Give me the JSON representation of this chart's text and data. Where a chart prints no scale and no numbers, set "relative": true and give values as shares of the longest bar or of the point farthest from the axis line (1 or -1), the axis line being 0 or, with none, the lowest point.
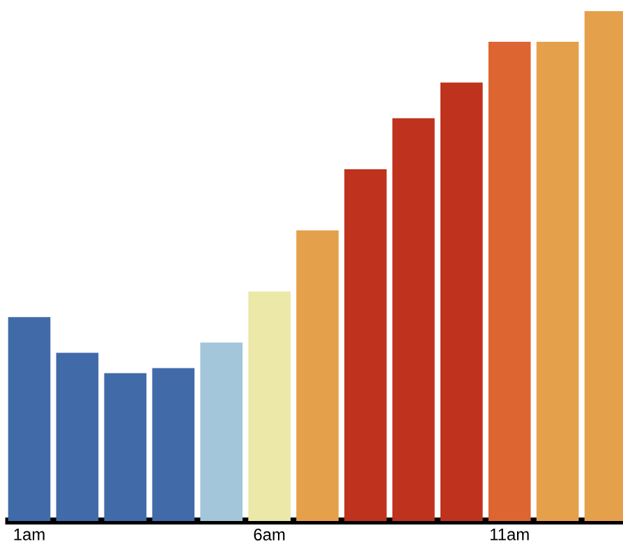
{
  "chart_data": {
    "type": "bar",
    "relative": true,
    "categories": [
      "1am",
      null,
      null,
      null,
      null,
      "6am",
      null,
      null,
      null,
      null,
      "11am",
      null,
      null
    ],
    "values": [
      0.4,
      0.33,
      0.29,
      0.3,
      0.35,
      0.45,
      0.57,
      0.69,
      0.79,
      0.86,
      0.94,
      0.94,
      1
    ],
    "colors": [
      "#416aa9",
      "#416aa9",
      "#416aa9",
      "#416aa9",
      "#a3c6da",
      "#ebe8a8",
      "#e5a04c",
      "#bf321d",
      "#bf321d",
      "#bf321d",
      "#dd6532",
      "#e5a04c",
      "#e5a04c"
    ]
  }
}
